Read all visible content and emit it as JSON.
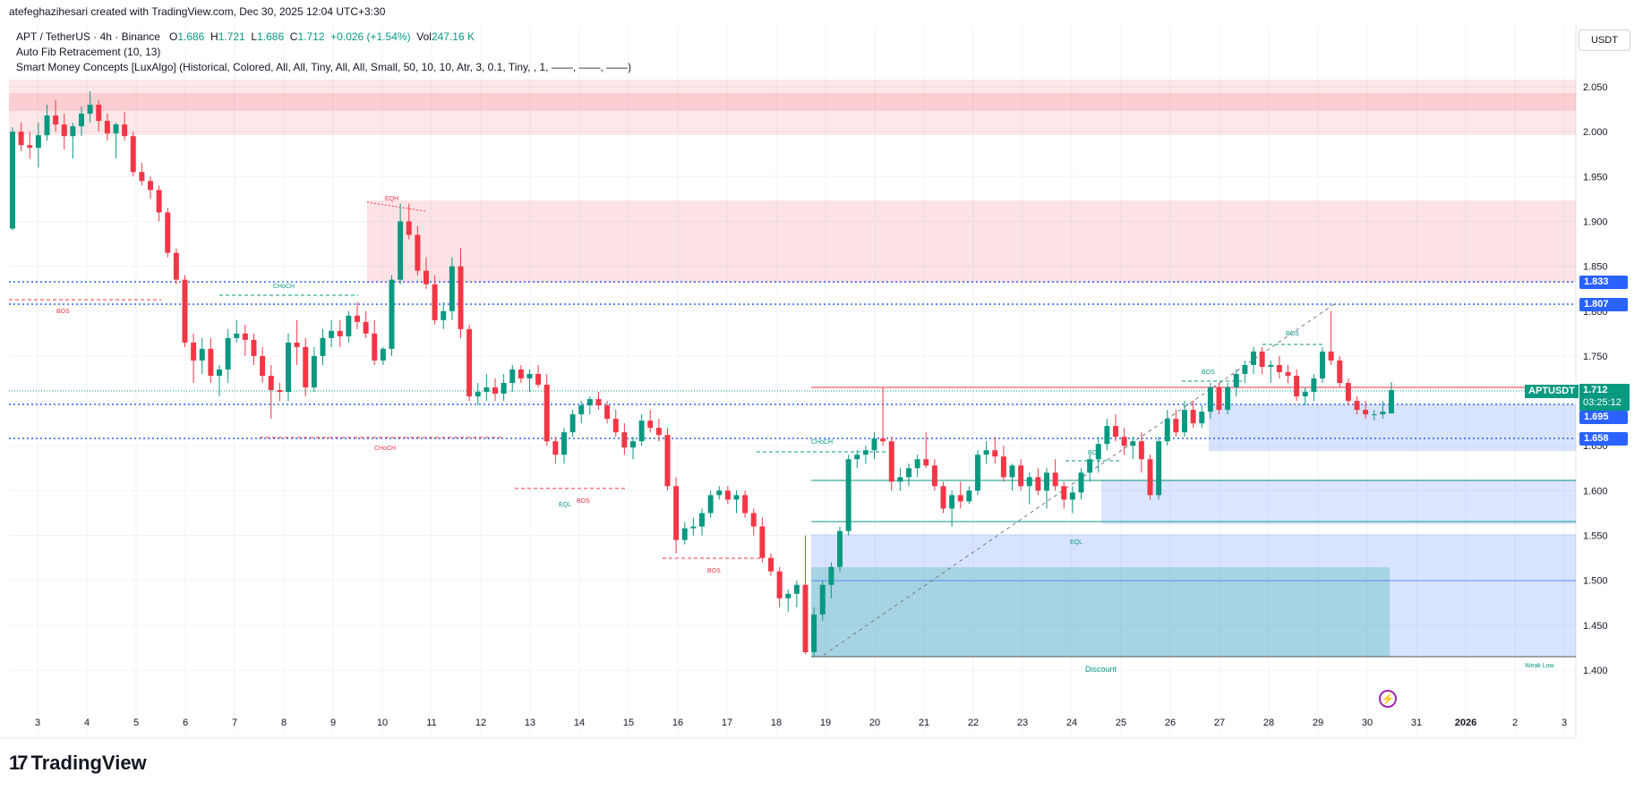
{
  "credit": "atefeghazihesari created with TradingView.com, Dec 30, 2025 12:04 UTC+3:30",
  "symbol_line": {
    "pair": "APT / TetherUS · 4h · Binance",
    "o_label": "O",
    "o": "1.686",
    "h_label": "H",
    "h": "1.721",
    "l_label": "L",
    "l": "1.686",
    "c_label": "C",
    "c": "1.712",
    "change": "+0.026 (+1.54%)",
    "vol_label": "Vol",
    "vol": "247.16 K"
  },
  "indicators": [
    "Auto Fib Retracement (10, 13)",
    "Smart Money Concepts [LuxAlgo] (Historical, Colored, All, All, Tiny, All, All, Small, 50, 10, 10, Atr, 3, 0.1, Tiny, , 1, ——, ——, ——)"
  ],
  "currency": "USDT",
  "price_axis": [
    "2.050",
    "2.000",
    "1.950",
    "1.900",
    "1.850",
    "1.800",
    "1.750",
    "1.700",
    "1.650",
    "1.600",
    "1.550",
    "1.500",
    "1.450",
    "1.400"
  ],
  "price_tags": {
    "t1833": "1.833",
    "t1807": "1.807",
    "t1695": "1.695",
    "t1658": "1.658",
    "symbol": "APTUSDT",
    "last": "1.712",
    "countdown": "03:25:12"
  },
  "time_axis": [
    "3",
    "4",
    "5",
    "6",
    "7",
    "8",
    "9",
    "10",
    "11",
    "12",
    "13",
    "14",
    "15",
    "16",
    "17",
    "18",
    "19",
    "20",
    "21",
    "22",
    "23",
    "24",
    "25",
    "26",
    "27",
    "28",
    "29",
    "30",
    "31",
    "2026",
    "2",
    "3"
  ],
  "annotations": {
    "eqh": "EQH",
    "choch_top": "CHoCH",
    "bos_left": "BOS",
    "choch_red": "CHoCH",
    "eql_left": "EQL",
    "bos_mid": "BOS",
    "bos_low": "BOS",
    "choch_green": "CHoCH",
    "bos_g1": "BOS",
    "eql_right": "EQL",
    "bos_g2": "BOS",
    "bos_g3": "BOS",
    "discount": "Discount",
    "weak_low": "Weak Low"
  },
  "colors": {
    "up": "#089981",
    "down": "#f23645",
    "fib_blue": "#2962ff",
    "premium": "#f23645",
    "discount": "#2962ff"
  },
  "logo_text": "TradingView",
  "icons": {
    "logo": "tradingview-logo-icon",
    "flash": "flash-icon"
  },
  "chart_data": {
    "type": "candlestick",
    "timeframe": "4h",
    "ylim": [
      1.38,
      2.07
    ],
    "levels": [
      1.833,
      1.807,
      1.712,
      1.695,
      1.658
    ],
    "candles": [
      [
        1.892,
        2.005,
        1.89,
        2.0
      ],
      [
        2.0,
        2.01,
        1.978,
        1.985
      ],
      [
        1.985,
        2.0,
        1.97,
        1.982
      ],
      [
        1.982,
        2.01,
        1.96,
        1.996
      ],
      [
        1.996,
        2.03,
        1.99,
        2.018
      ],
      [
        2.018,
        2.035,
        2.0,
        2.008
      ],
      [
        2.008,
        2.02,
        1.98,
        1.995
      ],
      [
        1.995,
        2.01,
        1.97,
        2.006
      ],
      [
        2.006,
        2.028,
        1.995,
        2.02
      ],
      [
        2.02,
        2.045,
        2.01,
        2.03
      ],
      [
        2.03,
        2.035,
        2.0,
        2.012
      ],
      [
        2.012,
        2.02,
        1.99,
        1.998
      ],
      [
        1.998,
        2.01,
        1.97,
        2.008
      ],
      [
        2.008,
        2.022,
        1.99,
        1.995
      ],
      [
        1.995,
        2.0,
        1.95,
        1.955
      ],
      [
        1.955,
        1.965,
        1.94,
        1.945
      ],
      [
        1.945,
        1.95,
        1.925,
        1.935
      ],
      [
        1.935,
        1.94,
        1.9,
        1.91
      ],
      [
        1.91,
        1.915,
        1.86,
        1.865
      ],
      [
        1.865,
        1.87,
        1.83,
        1.835
      ],
      [
        1.835,
        1.84,
        1.76,
        1.765
      ],
      [
        1.765,
        1.775,
        1.72,
        1.745
      ],
      [
        1.745,
        1.77,
        1.73,
        1.758
      ],
      [
        1.758,
        1.77,
        1.72,
        1.728
      ],
      [
        1.728,
        1.74,
        1.705,
        1.735
      ],
      [
        1.735,
        1.78,
        1.72,
        1.77
      ],
      [
        1.77,
        1.79,
        1.765,
        1.775
      ],
      [
        1.775,
        1.785,
        1.75,
        1.768
      ],
      [
        1.768,
        1.775,
        1.74,
        1.75
      ],
      [
        1.75,
        1.76,
        1.72,
        1.728
      ],
      [
        1.728,
        1.74,
        1.68,
        1.712
      ],
      [
        1.712,
        1.72,
        1.7,
        1.71
      ],
      [
        1.71,
        1.775,
        1.7,
        1.765
      ],
      [
        1.765,
        1.79,
        1.74,
        1.76
      ],
      [
        1.76,
        1.77,
        1.705,
        1.715
      ],
      [
        1.715,
        1.76,
        1.71,
        1.75
      ],
      [
        1.75,
        1.78,
        1.74,
        1.77
      ],
      [
        1.77,
        1.79,
        1.76,
        1.778
      ],
      [
        1.778,
        1.79,
        1.76,
        1.772
      ],
      [
        1.772,
        1.8,
        1.765,
        1.795
      ],
      [
        1.795,
        1.81,
        1.78,
        1.788
      ],
      [
        1.788,
        1.8,
        1.77,
        1.775
      ],
      [
        1.775,
        1.79,
        1.74,
        1.745
      ],
      [
        1.745,
        1.76,
        1.74,
        1.758
      ],
      [
        1.758,
        1.84,
        1.75,
        1.835
      ],
      [
        1.835,
        1.92,
        1.83,
        1.9
      ],
      [
        1.9,
        1.92,
        1.88,
        1.885
      ],
      [
        1.885,
        1.895,
        1.84,
        1.845
      ],
      [
        1.845,
        1.86,
        1.825,
        1.83
      ],
      [
        1.83,
        1.84,
        1.785,
        1.79
      ],
      [
        1.79,
        1.81,
        1.78,
        1.8
      ],
      [
        1.8,
        1.86,
        1.79,
        1.85
      ],
      [
        1.85,
        1.87,
        1.77,
        1.78
      ],
      [
        1.78,
        1.785,
        1.7,
        1.705
      ],
      [
        1.705,
        1.72,
        1.695,
        1.71
      ],
      [
        1.71,
        1.73,
        1.7,
        1.715
      ],
      [
        1.715,
        1.725,
        1.7,
        1.708
      ],
      [
        1.708,
        1.73,
        1.7,
        1.72
      ],
      [
        1.72,
        1.74,
        1.71,
        1.735
      ],
      [
        1.735,
        1.74,
        1.72,
        1.725
      ],
      [
        1.725,
        1.735,
        1.71,
        1.73
      ],
      [
        1.73,
        1.74,
        1.715,
        1.718
      ],
      [
        1.718,
        1.73,
        1.65,
        1.655
      ],
      [
        1.655,
        1.66,
        1.63,
        1.64
      ],
      [
        1.64,
        1.67,
        1.63,
        1.665
      ],
      [
        1.665,
        1.69,
        1.66,
        1.685
      ],
      [
        1.685,
        1.7,
        1.675,
        1.695
      ],
      [
        1.695,
        1.705,
        1.685,
        1.702
      ],
      [
        1.702,
        1.71,
        1.69,
        1.695
      ],
      [
        1.695,
        1.7,
        1.675,
        1.68
      ],
      [
        1.68,
        1.69,
        1.66,
        1.665
      ],
      [
        1.665,
        1.675,
        1.64,
        1.648
      ],
      [
        1.648,
        1.66,
        1.635,
        1.655
      ],
      [
        1.655,
        1.685,
        1.65,
        1.678
      ],
      [
        1.678,
        1.69,
        1.665,
        1.67
      ],
      [
        1.67,
        1.68,
        1.655,
        1.662
      ],
      [
        1.662,
        1.67,
        1.6,
        1.605
      ],
      [
        1.605,
        1.615,
        1.53,
        1.545
      ],
      [
        1.545,
        1.565,
        1.54,
        1.558
      ],
      [
        1.558,
        1.57,
        1.55,
        1.56
      ],
      [
        1.56,
        1.58,
        1.55,
        1.575
      ],
      [
        1.575,
        1.6,
        1.57,
        1.595
      ],
      [
        1.595,
        1.605,
        1.59,
        1.6
      ],
      [
        1.6,
        1.605,
        1.585,
        1.59
      ],
      [
        1.59,
        1.6,
        1.575,
        1.595
      ],
      [
        1.595,
        1.6,
        1.57,
        1.575
      ],
      [
        1.575,
        1.58,
        1.55,
        1.56
      ],
      [
        1.56,
        1.57,
        1.52,
        1.525
      ],
      [
        1.525,
        1.53,
        1.505,
        1.51
      ],
      [
        1.51,
        1.515,
        1.47,
        1.48
      ],
      [
        1.48,
        1.49,
        1.465,
        1.485
      ],
      [
        1.485,
        1.5,
        1.47,
        1.495
      ],
      [
        1.495,
        1.55,
        1.418,
        1.42
      ],
      [
        1.42,
        1.47,
        1.415,
        1.462
      ],
      [
        1.462,
        1.5,
        1.455,
        1.495
      ],
      [
        1.495,
        1.52,
        1.48,
        1.515
      ],
      [
        1.515,
        1.56,
        1.51,
        1.555
      ],
      [
        1.555,
        1.64,
        1.55,
        1.635
      ],
      [
        1.635,
        1.645,
        1.625,
        1.64
      ],
      [
        1.64,
        1.65,
        1.63,
        1.645
      ],
      [
        1.645,
        1.665,
        1.635,
        1.658
      ],
      [
        1.658,
        1.715,
        1.65,
        1.655
      ],
      [
        1.655,
        1.66,
        1.6,
        1.61
      ],
      [
        1.61,
        1.625,
        1.6,
        1.615
      ],
      [
        1.615,
        1.63,
        1.605,
        1.625
      ],
      [
        1.625,
        1.64,
        1.615,
        1.635
      ],
      [
        1.635,
        1.665,
        1.625,
        1.628
      ],
      [
        1.628,
        1.635,
        1.6,
        1.605
      ],
      [
        1.605,
        1.61,
        1.575,
        1.58
      ],
      [
        1.58,
        1.6,
        1.56,
        1.595
      ],
      [
        1.595,
        1.61,
        1.58,
        1.588
      ],
      [
        1.588,
        1.605,
        1.585,
        1.6
      ],
      [
        1.6,
        1.645,
        1.595,
        1.64
      ],
      [
        1.64,
        1.655,
        1.63,
        1.645
      ],
      [
        1.645,
        1.66,
        1.63,
        1.638
      ],
      [
        1.638,
        1.65,
        1.61,
        1.615
      ],
      [
        1.615,
        1.63,
        1.6,
        1.628
      ],
      [
        1.628,
        1.635,
        1.6,
        1.605
      ],
      [
        1.605,
        1.62,
        1.585,
        1.615
      ],
      [
        1.615,
        1.625,
        1.595,
        1.6
      ],
      [
        1.6,
        1.625,
        1.58,
        1.62
      ],
      [
        1.62,
        1.635,
        1.6,
        1.605
      ],
      [
        1.605,
        1.61,
        1.58,
        1.59
      ],
      [
        1.59,
        1.605,
        1.575,
        1.598
      ],
      [
        1.598,
        1.625,
        1.59,
        1.62
      ],
      [
        1.62,
        1.64,
        1.61,
        1.635
      ],
      [
        1.635,
        1.66,
        1.62,
        1.652
      ],
      [
        1.652,
        1.68,
        1.645,
        1.672
      ],
      [
        1.672,
        1.685,
        1.655,
        1.66
      ],
      [
        1.66,
        1.67,
        1.64,
        1.65
      ],
      [
        1.65,
        1.66,
        1.635,
        1.655
      ],
      [
        1.655,
        1.665,
        1.62,
        1.635
      ],
      [
        1.635,
        1.64,
        1.59,
        1.595
      ],
      [
        1.595,
        1.66,
        1.59,
        1.655
      ],
      [
        1.655,
        1.69,
        1.65,
        1.68
      ],
      [
        1.68,
        1.69,
        1.66,
        1.665
      ],
      [
        1.665,
        1.7,
        1.66,
        1.69
      ],
      [
        1.69,
        1.7,
        1.67,
        1.675
      ],
      [
        1.675,
        1.695,
        1.67,
        1.688
      ],
      [
        1.688,
        1.72,
        1.68,
        1.715
      ],
      [
        1.715,
        1.72,
        1.685,
        1.69
      ],
      [
        1.69,
        1.72,
        1.685,
        1.715
      ],
      [
        1.715,
        1.735,
        1.705,
        1.73
      ],
      [
        1.73,
        1.745,
        1.72,
        1.74
      ],
      [
        1.74,
        1.76,
        1.73,
        1.755
      ],
      [
        1.755,
        1.76,
        1.73,
        1.738
      ],
      [
        1.738,
        1.745,
        1.72,
        1.74
      ],
      [
        1.74,
        1.75,
        1.725,
        1.732
      ],
      [
        1.732,
        1.74,
        1.72,
        1.728
      ],
      [
        1.728,
        1.735,
        1.7,
        1.705
      ],
      [
        1.705,
        1.715,
        1.695,
        1.71
      ],
      [
        1.71,
        1.73,
        1.7,
        1.725
      ],
      [
        1.725,
        1.76,
        1.72,
        1.755
      ],
      [
        1.755,
        1.8,
        1.74,
        1.745
      ],
      [
        1.745,
        1.75,
        1.715,
        1.72
      ],
      [
        1.72,
        1.725,
        1.695,
        1.7
      ],
      [
        1.7,
        1.705,
        1.685,
        1.69
      ],
      [
        1.69,
        1.7,
        1.68,
        1.685
      ],
      [
        1.685,
        1.69,
        1.678,
        1.685
      ],
      [
        1.685,
        1.7,
        1.68,
        1.688
      ],
      [
        1.686,
        1.721,
        1.686,
        1.712
      ]
    ]
  }
}
